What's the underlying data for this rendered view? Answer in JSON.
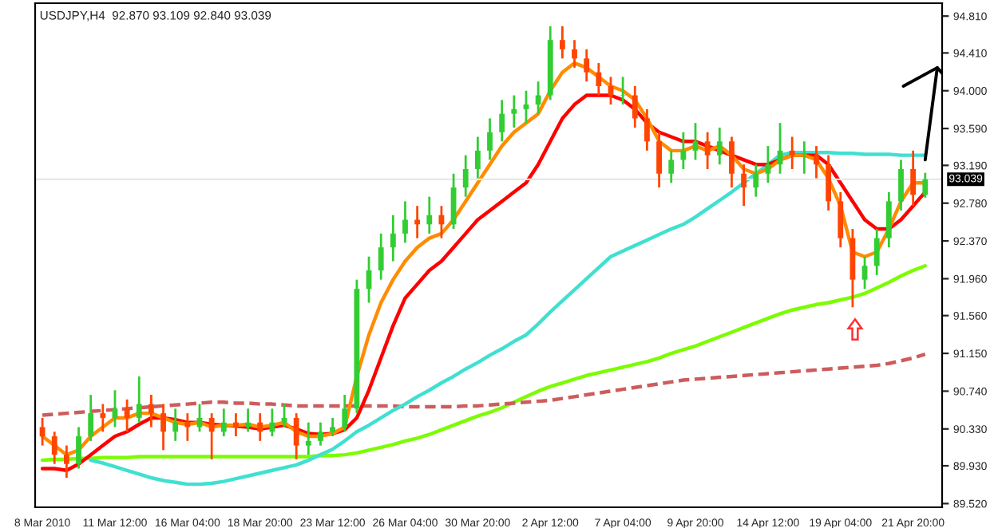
{
  "chart_data": {
    "type": "candlestick",
    "title": "USDJPY,H4  92.870 93.109 92.840 93.039",
    "categories": [
      "8 Mar 2010",
      null,
      null,
      null,
      null,
      null,
      "11 Mar 12:00",
      null,
      null,
      null,
      null,
      null,
      "16 Mar 04:00",
      null,
      null,
      null,
      null,
      null,
      "18 Mar 20:00",
      null,
      null,
      null,
      null,
      null,
      "23 Mar 12:00",
      null,
      null,
      null,
      null,
      null,
      "26 Mar 04:00",
      null,
      null,
      null,
      null,
      null,
      "30 Mar 20:00",
      null,
      null,
      null,
      null,
      null,
      "2 Apr 12:00",
      null,
      null,
      null,
      null,
      null,
      "7 Apr 04:00",
      null,
      null,
      null,
      null,
      null,
      "9 Apr 20:00",
      null,
      null,
      null,
      null,
      null,
      "14 Apr 12:00",
      null,
      null,
      null,
      null,
      null,
      "19 Apr 04:00",
      null,
      null,
      null,
      null,
      null,
      "21 Apr 20:00",
      null
    ],
    "ohlc": [
      [
        90.35,
        90.45,
        90.15,
        90.25
      ],
      [
        90.25,
        90.3,
        89.95,
        90.05
      ],
      [
        90.05,
        90.15,
        89.8,
        89.95
      ],
      [
        89.95,
        90.35,
        89.9,
        90.25
      ],
      [
        90.25,
        90.7,
        90.2,
        90.5
      ],
      [
        90.5,
        90.6,
        90.3,
        90.45
      ],
      [
        90.45,
        90.75,
        90.35,
        90.55
      ],
      [
        90.55,
        90.65,
        90.3,
        90.45
      ],
      [
        90.45,
        90.9,
        90.4,
        90.6
      ],
      [
        90.6,
        90.7,
        90.35,
        90.5
      ],
      [
        90.5,
        90.6,
        90.1,
        90.3
      ],
      [
        90.3,
        90.55,
        90.2,
        90.4
      ],
      [
        90.4,
        90.5,
        90.2,
        90.35
      ],
      [
        90.35,
        90.6,
        90.3,
        90.45
      ],
      [
        90.45,
        90.5,
        90.0,
        90.3
      ],
      [
        90.3,
        90.55,
        90.25,
        90.4
      ],
      [
        90.4,
        90.5,
        90.25,
        90.35
      ],
      [
        90.35,
        90.55,
        90.3,
        90.4
      ],
      [
        90.4,
        90.5,
        90.2,
        90.3
      ],
      [
        90.3,
        90.55,
        90.25,
        90.4
      ],
      [
        90.4,
        90.6,
        90.35,
        90.45
      ],
      [
        90.45,
        90.5,
        90.0,
        90.15
      ],
      [
        90.15,
        90.4,
        90.05,
        90.2
      ],
      [
        90.2,
        90.4,
        90.15,
        90.3
      ],
      [
        90.3,
        90.45,
        90.25,
        90.35
      ],
      [
        90.35,
        90.7,
        90.3,
        90.55
      ],
      [
        90.55,
        91.95,
        90.5,
        91.85
      ],
      [
        91.85,
        92.2,
        91.7,
        92.05
      ],
      [
        92.05,
        92.45,
        91.95,
        92.3
      ],
      [
        92.3,
        92.65,
        92.15,
        92.45
      ],
      [
        92.45,
        92.8,
        92.35,
        92.6
      ],
      [
        92.6,
        92.75,
        92.4,
        92.55
      ],
      [
        92.55,
        92.85,
        92.45,
        92.65
      ],
      [
        92.65,
        92.75,
        92.4,
        92.55
      ],
      [
        92.55,
        93.1,
        92.5,
        92.95
      ],
      [
        92.95,
        93.3,
        92.85,
        93.15
      ],
      [
        93.15,
        93.5,
        93.05,
        93.35
      ],
      [
        93.35,
        93.7,
        93.25,
        93.55
      ],
      [
        93.55,
        93.9,
        93.45,
        93.75
      ],
      [
        93.75,
        93.95,
        93.6,
        93.8
      ],
      [
        93.8,
        94.0,
        93.65,
        93.85
      ],
      [
        93.85,
        94.1,
        93.75,
        93.95
      ],
      [
        93.95,
        94.7,
        93.9,
        94.55
      ],
      [
        94.55,
        94.7,
        94.35,
        94.45
      ],
      [
        94.45,
        94.55,
        94.25,
        94.35
      ],
      [
        94.35,
        94.45,
        94.1,
        94.2
      ],
      [
        94.2,
        94.3,
        93.95,
        94.05
      ],
      [
        94.05,
        94.15,
        93.85,
        93.95
      ],
      [
        93.95,
        94.15,
        93.85,
        93.95
      ],
      [
        93.95,
        94.05,
        93.6,
        93.7
      ],
      [
        93.7,
        93.8,
        93.35,
        93.45
      ],
      [
        93.45,
        93.55,
        92.95,
        93.1
      ],
      [
        93.1,
        93.35,
        93.0,
        93.25
      ],
      [
        93.25,
        93.55,
        93.15,
        93.35
      ],
      [
        93.35,
        93.65,
        93.25,
        93.45
      ],
      [
        93.45,
        93.55,
        93.15,
        93.3
      ],
      [
        93.3,
        93.6,
        93.2,
        93.45
      ],
      [
        93.45,
        93.5,
        92.95,
        93.1
      ],
      [
        93.1,
        93.2,
        92.75,
        92.95
      ],
      [
        92.95,
        93.2,
        92.85,
        93.1
      ],
      [
        93.1,
        93.4,
        93.0,
        93.2
      ],
      [
        93.2,
        93.65,
        93.1,
        93.35
      ],
      [
        93.35,
        93.5,
        93.15,
        93.3
      ],
      [
        93.3,
        93.45,
        93.1,
        93.3
      ],
      [
        93.3,
        93.4,
        93.05,
        93.2
      ],
      [
        93.2,
        93.3,
        92.7,
        92.8
      ],
      [
        92.8,
        92.9,
        92.3,
        92.4
      ],
      [
        92.4,
        92.5,
        91.65,
        91.95
      ],
      [
        91.95,
        92.2,
        91.85,
        92.1
      ],
      [
        92.1,
        92.5,
        92.0,
        92.4
      ],
      [
        92.4,
        92.9,
        92.3,
        92.8
      ],
      [
        92.8,
        93.25,
        92.7,
        93.15
      ],
      [
        93.15,
        93.35,
        92.75,
        92.87
      ],
      [
        92.87,
        93.109,
        92.84,
        93.039
      ]
    ],
    "series": [
      {
        "type": "line",
        "color": "#7cfc00",
        "values": [
          89.99,
          90.0,
          90.0,
          90.01,
          90.01,
          90.02,
          90.02,
          90.02,
          90.03,
          90.03,
          90.03,
          90.03,
          90.03,
          90.03,
          90.03,
          90.03,
          90.03,
          90.03,
          90.03,
          90.03,
          90.03,
          90.03,
          90.03,
          90.04,
          90.04,
          90.05,
          90.07,
          90.1,
          90.13,
          90.16,
          90.2,
          90.23,
          90.27,
          90.32,
          90.37,
          90.42,
          90.47,
          90.51,
          90.56,
          90.62,
          90.68,
          90.74,
          90.79,
          90.83,
          90.87,
          90.91,
          90.94,
          90.97,
          91.0,
          91.03,
          91.06,
          91.1,
          91.15,
          91.19,
          91.23,
          91.28,
          91.33,
          91.38,
          91.43,
          91.48,
          91.53,
          91.58,
          91.62,
          91.65,
          91.68,
          91.7,
          91.73,
          91.76,
          91.8,
          91.86,
          91.92,
          91.99,
          92.05,
          92.1
        ]
      },
      {
        "type": "line",
        "color": "#cd5c5c",
        "line_style": "dashed",
        "values": [
          90.48,
          90.49,
          90.5,
          90.51,
          90.52,
          90.53,
          90.54,
          90.55,
          90.56,
          90.57,
          90.58,
          90.59,
          90.6,
          90.61,
          90.62,
          90.62,
          90.61,
          90.61,
          90.6,
          90.6,
          90.59,
          90.58,
          90.58,
          90.58,
          90.58,
          90.58,
          90.58,
          90.58,
          90.58,
          90.58,
          90.57,
          90.57,
          90.57,
          90.57,
          90.57,
          90.58,
          90.58,
          90.59,
          90.6,
          90.61,
          90.62,
          90.63,
          90.64,
          90.66,
          90.68,
          90.7,
          90.72,
          90.74,
          90.76,
          90.78,
          90.8,
          90.82,
          90.84,
          90.86,
          90.87,
          90.88,
          90.89,
          90.9,
          90.91,
          90.92,
          90.93,
          90.94,
          90.95,
          90.96,
          90.97,
          90.98,
          90.99,
          91.0,
          91.01,
          91.02,
          91.04,
          91.07,
          91.1,
          91.14
        ]
      },
      {
        "type": "line",
        "color": "#40e0d0",
        "values": [
          null,
          null,
          null,
          null,
          89.99,
          89.96,
          89.92,
          89.88,
          89.84,
          89.8,
          89.77,
          89.75,
          89.73,
          89.73,
          89.74,
          89.76,
          89.79,
          89.82,
          89.85,
          89.88,
          89.91,
          89.94,
          89.99,
          90.05,
          90.11,
          90.2,
          90.3,
          90.37,
          90.45,
          90.53,
          90.6,
          90.68,
          90.75,
          90.83,
          90.9,
          90.98,
          91.05,
          91.13,
          91.2,
          91.28,
          91.35,
          91.47,
          91.6,
          91.72,
          91.84,
          91.96,
          92.08,
          92.2,
          92.26,
          92.32,
          92.38,
          92.44,
          92.5,
          92.55,
          92.63,
          92.72,
          92.81,
          92.9,
          93.0,
          93.1,
          93.2,
          93.3,
          93.33,
          93.33,
          93.33,
          93.33,
          93.32,
          93.32,
          93.31,
          93.31,
          93.31,
          93.3,
          93.3,
          93.3
        ]
      },
      {
        "type": "line",
        "color": "#ff0000",
        "values": [
          89.9,
          89.9,
          89.88,
          89.95,
          90.05,
          90.15,
          90.25,
          90.3,
          90.38,
          90.45,
          90.45,
          90.43,
          90.4,
          90.4,
          90.38,
          90.37,
          90.36,
          90.35,
          90.33,
          90.35,
          90.37,
          90.33,
          90.28,
          90.27,
          90.28,
          90.32,
          90.45,
          90.75,
          91.1,
          91.45,
          91.75,
          91.9,
          92.05,
          92.15,
          92.3,
          92.45,
          92.6,
          92.7,
          92.8,
          92.9,
          93.0,
          93.2,
          93.45,
          93.7,
          93.85,
          93.95,
          93.95,
          93.95,
          93.9,
          93.8,
          93.65,
          93.55,
          93.5,
          93.45,
          93.45,
          93.4,
          93.35,
          93.3,
          93.25,
          93.2,
          93.2,
          93.25,
          93.3,
          93.3,
          93.3,
          93.2,
          93.0,
          92.8,
          92.6,
          92.5,
          92.5,
          92.6,
          92.75,
          92.9
        ]
      },
      {
        "type": "line",
        "color": "#ff8c00",
        "values": [
          90.25,
          90.15,
          90.05,
          90.1,
          90.25,
          90.35,
          90.45,
          90.45,
          90.5,
          90.5,
          90.45,
          90.4,
          90.38,
          90.4,
          90.35,
          90.37,
          90.37,
          90.38,
          90.35,
          90.37,
          90.4,
          90.3,
          90.25,
          90.25,
          90.28,
          90.35,
          90.9,
          91.35,
          91.7,
          91.95,
          92.15,
          92.3,
          92.4,
          92.45,
          92.6,
          92.8,
          93.0,
          93.2,
          93.4,
          93.55,
          93.65,
          93.75,
          94.0,
          94.2,
          94.3,
          94.25,
          94.15,
          94.05,
          94.0,
          93.9,
          93.7,
          93.45,
          93.35,
          93.35,
          93.4,
          93.35,
          93.4,
          93.3,
          93.15,
          93.1,
          93.15,
          93.25,
          93.3,
          93.3,
          93.25,
          93.05,
          92.75,
          92.25,
          92.2,
          92.25,
          92.5,
          92.8,
          93.0,
          93.0
        ]
      }
    ],
    "ylim": [
      89.48,
      94.95
    ],
    "yticks": [
      {
        "value": 89.52,
        "label": "89.520"
      },
      {
        "value": 89.93,
        "label": "89.930"
      },
      {
        "value": 90.33,
        "label": "90.330"
      },
      {
        "value": 90.74,
        "label": "90.740"
      },
      {
        "value": 91.15,
        "label": "91.150"
      },
      {
        "value": 91.56,
        "label": "91.560"
      },
      {
        "value": 91.96,
        "label": "91.960"
      },
      {
        "value": 92.37,
        "label": "92.370"
      },
      {
        "value": 92.78,
        "label": "92.780"
      },
      {
        "value": 93.19,
        "label": "93.190"
      },
      {
        "value": 93.59,
        "label": "93.590"
      },
      {
        "value": 94.0,
        "label": "94.000"
      },
      {
        "value": 94.41,
        "label": "94.410"
      },
      {
        "value": 94.81,
        "label": "94.810"
      }
    ],
    "ref_lines": [
      {
        "axis": "y",
        "value": 93.039,
        "label": "93.039",
        "color": "#e8e8e8"
      }
    ],
    "grid": false
  }
}
